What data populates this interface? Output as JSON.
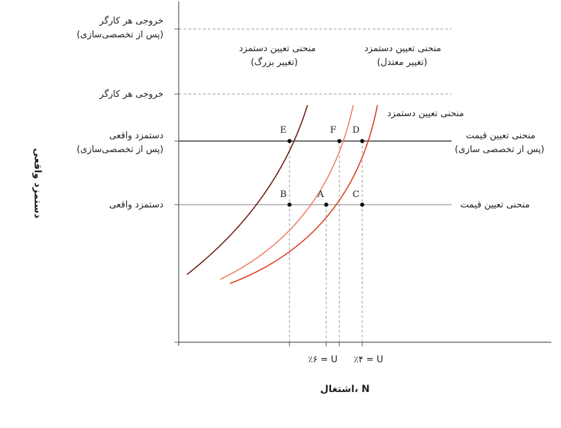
{
  "axes": {
    "y_title": "دستمزد واقعی",
    "x_title": "اشتغال، N",
    "x_ticks": [
      "٪۶ = U",
      "٪۴ = U"
    ]
  },
  "y_levels": {
    "productivity_post": [
      "خروجی هر کارگر",
      "(پس از تخصصی‌سازی)"
    ],
    "productivity": "خروجی هر کارگر",
    "real_wage_post": [
      "دستمزد واقعی",
      "(پس از تخصصی‌سازی)"
    ],
    "real_wage": "دستمزد واقعی"
  },
  "curve_labels": {
    "ws_big": [
      "منحنی تعیین دستمزد",
      "(تغییر بزرگ)"
    ],
    "ws_moderate": [
      "منحنی تعیین دستمزد",
      "(تغییر معتدل)"
    ],
    "ws_original": "منحنی تعیین دستمزد",
    "ps_post": [
      "منحنی تعیین قیمت",
      "(پس از تخصصی سازی)"
    ],
    "ps": "منحنی تعیین قیمت"
  },
  "points": [
    "E",
    "F",
    "D",
    "B",
    "A",
    "C"
  ],
  "colors": {
    "ws_big": "#6b1a10",
    "ws_moderate": "#ef8060",
    "ws_original": "#dd3a1c",
    "axis": "#555555",
    "dashed": "#999999",
    "ps_post": "#111111",
    "ps": "#999999"
  }
}
